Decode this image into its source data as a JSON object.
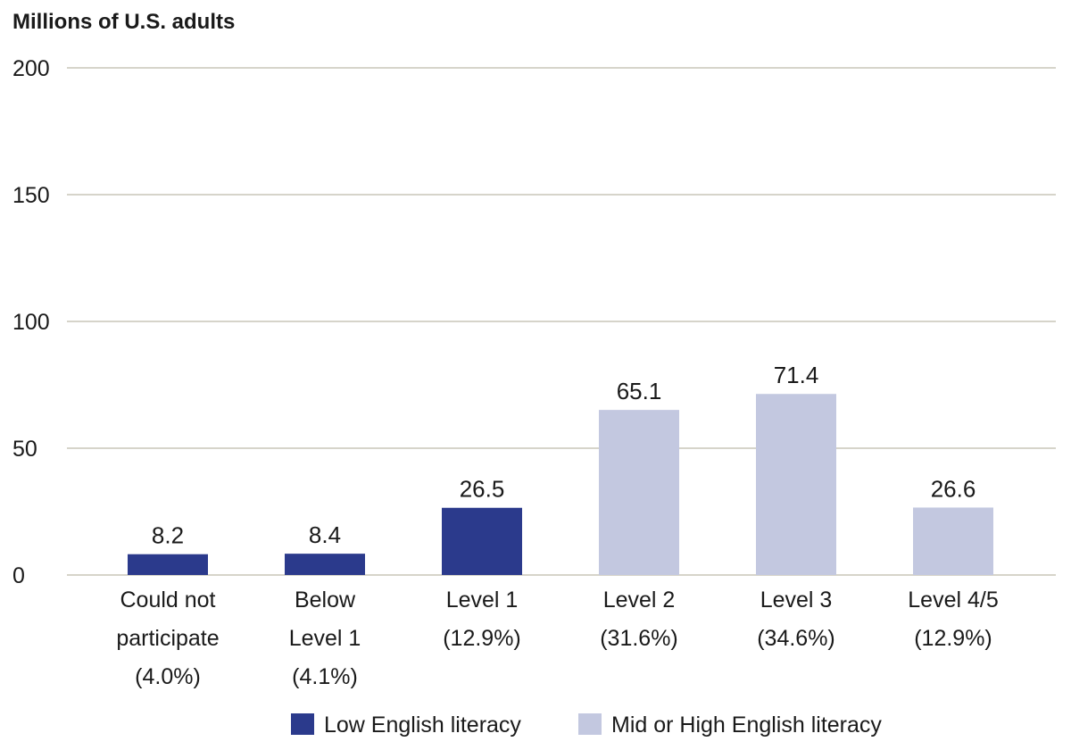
{
  "chart_data": {
    "type": "bar",
    "ylabel": "Millions of U.S. adults",
    "ylim": [
      0,
      200
    ],
    "yticks": [
      0,
      50,
      100,
      150,
      200
    ],
    "grid": true,
    "legend_position": "bottom",
    "categories": [
      [
        "Could not",
        "participate",
        "(4.0%)"
      ],
      [
        "Below",
        "Level 1",
        "(4.1%)"
      ],
      [
        "Level 1",
        "(12.9%)"
      ],
      [
        "Level 2",
        "(31.6%)"
      ],
      [
        "Level 3",
        "(34.6%)"
      ],
      [
        "Level 4/5",
        "(12.9%)"
      ]
    ],
    "values": [
      8.2,
      8.4,
      26.5,
      65.1,
      71.4,
      26.6
    ],
    "value_labels": [
      "8.2",
      "8.4",
      "26.5",
      "65.1",
      "71.4",
      "26.6"
    ],
    "series_index": [
      0,
      0,
      0,
      1,
      1,
      1
    ],
    "series": [
      {
        "name": "Low English literacy",
        "color": "#2b3a8c"
      },
      {
        "name": "Mid or High English literacy",
        "color": "#c3c8e0"
      }
    ]
  }
}
